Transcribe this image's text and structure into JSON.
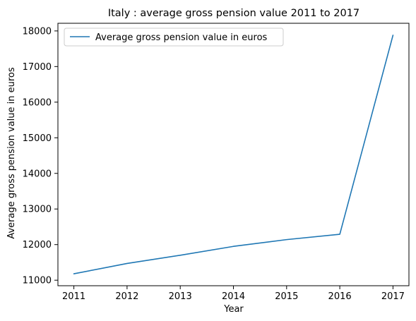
{
  "chart_data": {
    "type": "line",
    "title": "Italy : average gross pension value 2011 to 2017",
    "xlabel": "Year",
    "ylabel": "Average gross pension value in euros",
    "x": [
      2011,
      2012,
      2013,
      2014,
      2015,
      2016,
      2017
    ],
    "series": [
      {
        "name": "Average gross pension value in euros",
        "values": [
          11180,
          11470,
          11700,
          11950,
          12140,
          12290,
          17880
        ],
        "color": "#1f77b4"
      }
    ],
    "xticks": [
      "2011",
      "2012",
      "2013",
      "2014",
      "2015",
      "2016",
      "2017"
    ],
    "yticks": [
      11000,
      12000,
      13000,
      14000,
      15000,
      16000,
      17000,
      18000
    ],
    "xlim": [
      2010.7,
      2017.3
    ],
    "ylim": [
      10845,
      18215
    ],
    "grid": false,
    "legend_position": "top-left"
  }
}
